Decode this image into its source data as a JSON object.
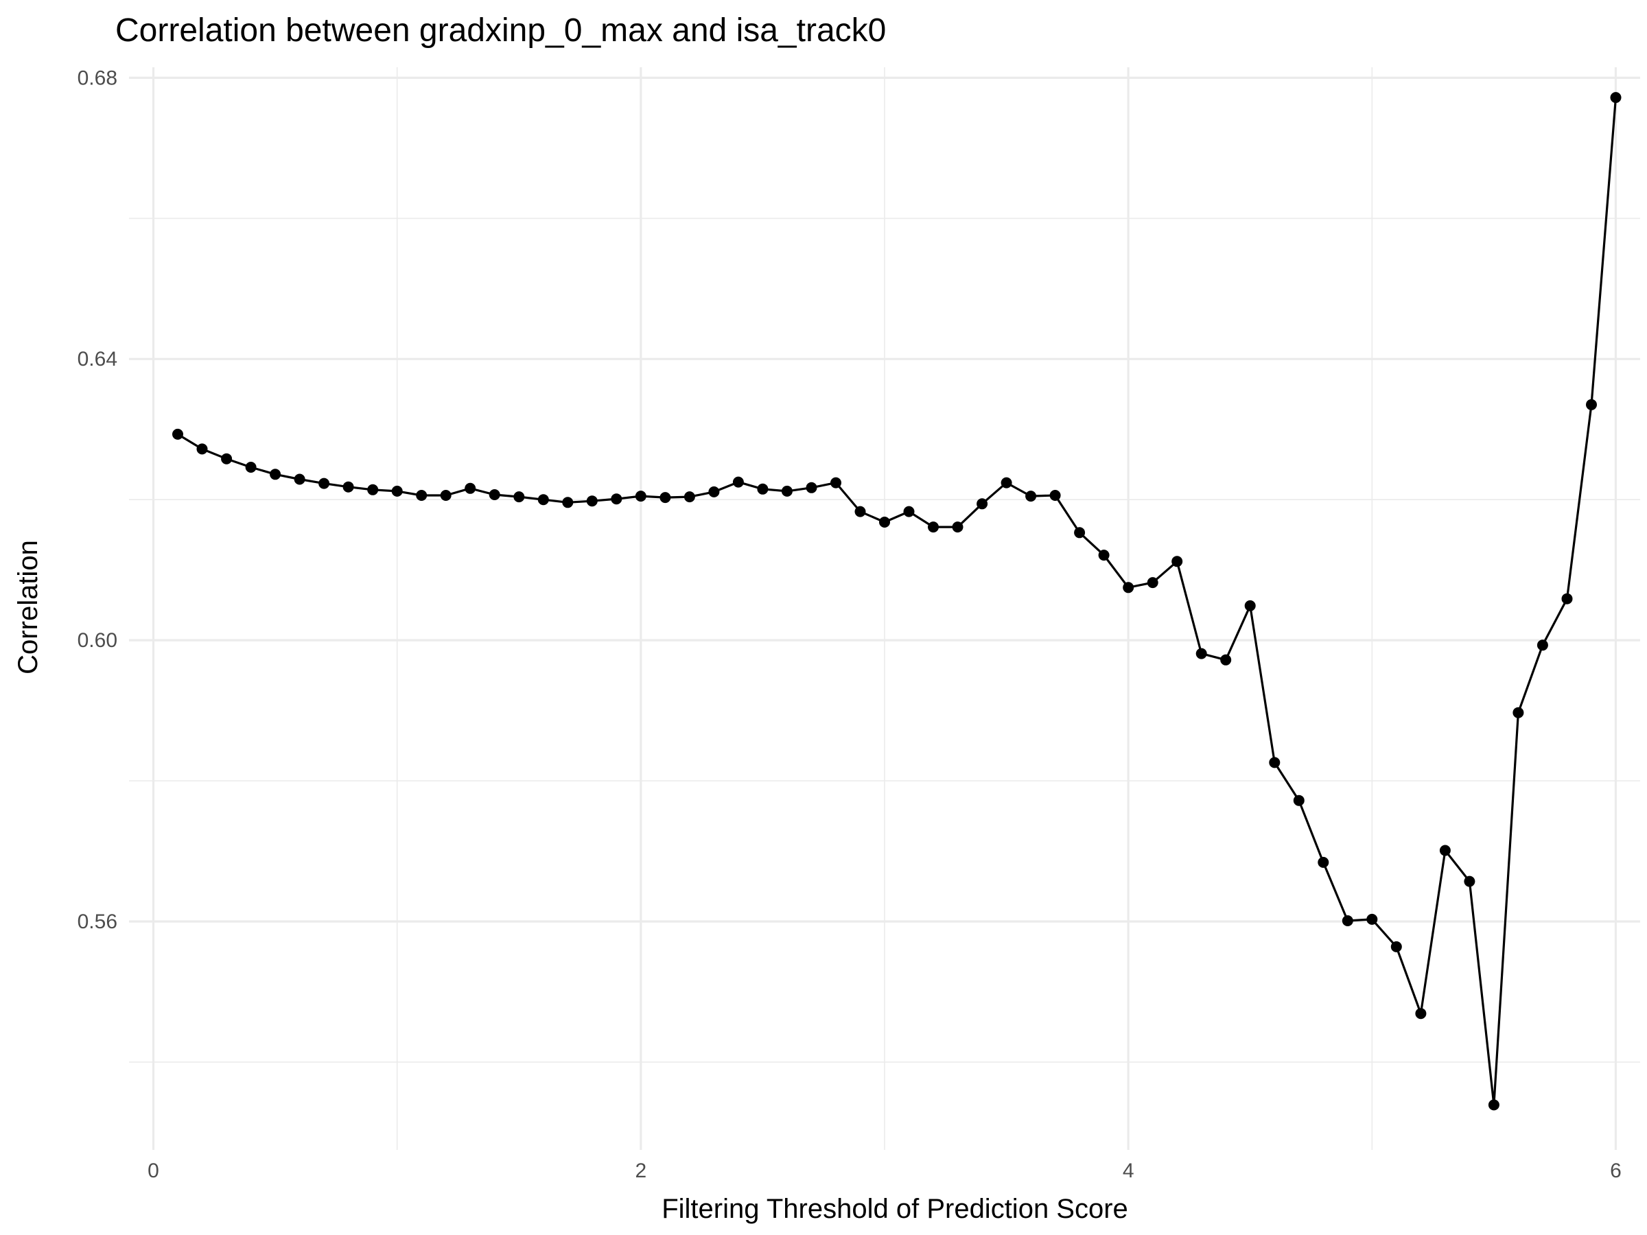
{
  "chart_data": {
    "type": "line",
    "title": "Correlation between gradxinp_0_max and isa_track0",
    "xlabel": "Filtering Threshold of Prediction Score",
    "ylabel": "Correlation",
    "xlim": [
      -0.1,
      6.1
    ],
    "ylim": [
      0.5275,
      0.6815
    ],
    "x_ticks": [
      0,
      2,
      4,
      6
    ],
    "x_tick_labels": [
      "0",
      "2",
      "4",
      "6"
    ],
    "x_minor_ticks": [
      1,
      3,
      5
    ],
    "y_ticks": [
      0.56,
      0.6,
      0.64,
      0.68
    ],
    "y_tick_labels": [
      "0.56",
      "0.60",
      "0.64",
      "0.68"
    ],
    "y_minor_ticks": [
      0.54,
      0.58,
      0.62,
      0.66
    ],
    "grid": true,
    "legend": "none",
    "series": [
      {
        "x": [
          0.1,
          0.2,
          0.3,
          0.4,
          0.5,
          0.6,
          0.7,
          0.8,
          0.9,
          1.0,
          1.1,
          1.2,
          1.3,
          1.4,
          1.5,
          1.6,
          1.7,
          1.8,
          1.9,
          2.0,
          2.1,
          2.2,
          2.3,
          2.4,
          2.5,
          2.6,
          2.7,
          2.8,
          2.9,
          3.0,
          3.1,
          3.2,
          3.3,
          3.4,
          3.5,
          3.6,
          3.7,
          3.8,
          3.9,
          4.0,
          4.1,
          4.2,
          4.3,
          4.4,
          4.5,
          4.6,
          4.7,
          4.8,
          4.9,
          5.0,
          5.1,
          5.2,
          5.3,
          5.4,
          5.5,
          5.6,
          5.7,
          5.8,
          5.9,
          6.0
        ],
        "values": [
          0.6293,
          0.6272,
          0.6258,
          0.6246,
          0.6236,
          0.6229,
          0.6223,
          0.6218,
          0.6214,
          0.6212,
          0.6206,
          0.6206,
          0.6216,
          0.6207,
          0.6204,
          0.62,
          0.6196,
          0.6198,
          0.6201,
          0.6205,
          0.6203,
          0.6204,
          0.6211,
          0.6225,
          0.6215,
          0.6212,
          0.6217,
          0.6224,
          0.6183,
          0.6168,
          0.6183,
          0.6161,
          0.6161,
          0.6194,
          0.6224,
          0.6205,
          0.6206,
          0.6153,
          0.6121,
          0.6075,
          0.6082,
          0.6112,
          0.5981,
          0.5972,
          0.6049,
          0.5826,
          0.5772,
          0.5684,
          0.5601,
          0.5603,
          0.5564,
          0.5469,
          0.5701,
          0.5657,
          0.5339,
          0.5897,
          0.5993,
          0.6059,
          0.6335,
          0.6772
        ]
      }
    ]
  }
}
